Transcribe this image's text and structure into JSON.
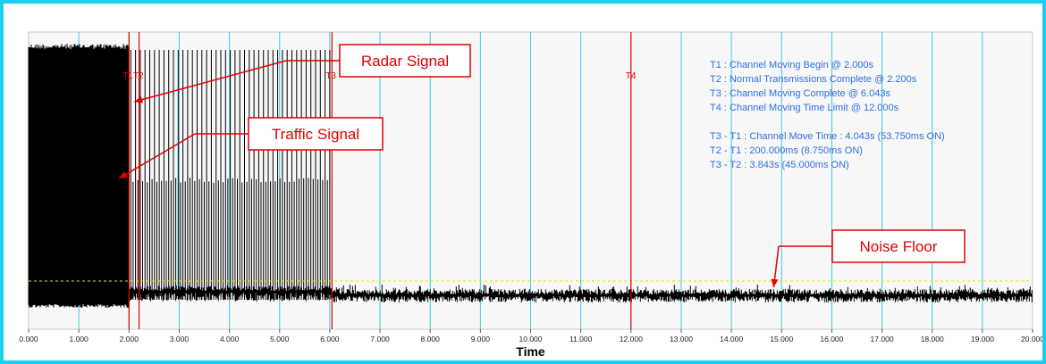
{
  "chart_data": {
    "type": "line",
    "xlabel": "Time",
    "ylabel": "",
    "xlim": [
      0,
      20
    ],
    "x_ticks": [
      "0.000",
      "1.000",
      "2.000",
      "3.000",
      "4.000",
      "5.000",
      "6.000",
      "7.000",
      "8.000",
      "9.000",
      "10.000",
      "11.000",
      "12.000",
      "13.000",
      "14.000",
      "15.000",
      "16.000",
      "17.000",
      "18.000",
      "19.000",
      "20.000"
    ],
    "grid": "vertical",
    "markers": [
      {
        "label": "T1",
        "x": 2.0
      },
      {
        "label": "T2",
        "x": 2.2
      },
      {
        "label": "T3",
        "x": 6.043
      },
      {
        "label": "T4",
        "x": 12.0
      }
    ],
    "marker_label_text": [
      "T1T2",
      "T3",
      "T4"
    ],
    "info_lines": [
      "T1 : Channel Moving Begin @ 2.000s",
      "T2 : Normal Transmissions Complete @ 2.200s",
      "T3 : Channel Moving Complete @ 6.043s",
      "T4 : Channel Moving Time Limit @ 12.000s",
      "",
      "T3 - T1 : Channel Move Time : 4.043s (53.750ms ON)",
      "T2 - T1 : 200.000ms (8.750ms ON)",
      "T3 - T2 : 3.843s (45.000ms ON)"
    ],
    "annotations": [
      {
        "text": "Radar Signal",
        "target_x": 2.0
      },
      {
        "text": "Traffic Signal",
        "target_x": 1.8
      },
      {
        "text": "Noise Floor",
        "target_x": 14.7
      }
    ],
    "colors": {
      "background": "#1ad0f0",
      "plot": "#f7f7f7",
      "grid": "#3cc6e8",
      "marker": "#e00000",
      "info_text": "#2f6fe0",
      "noise_threshold": "#e8e000",
      "signal": "#000000"
    }
  }
}
